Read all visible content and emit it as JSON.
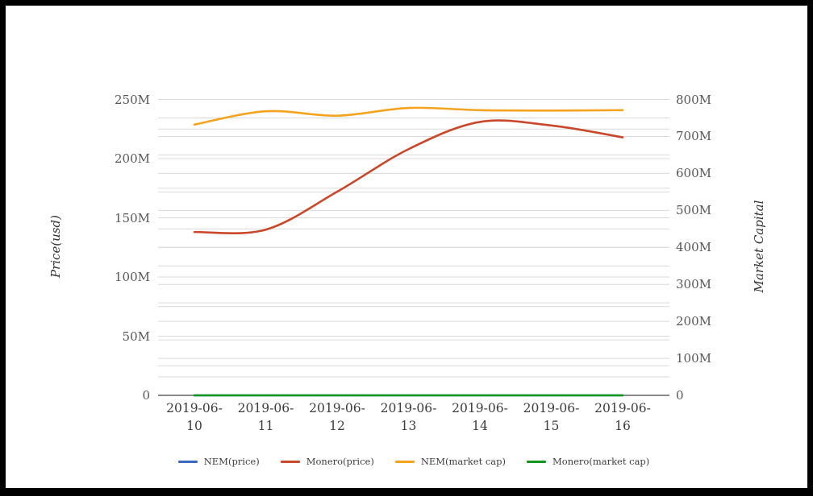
{
  "chart_data": {
    "type": "line",
    "line_style": "smooth",
    "grid": true,
    "legend_position": "bottom",
    "x": [
      "2019-06-10",
      "2019-06-11",
      "2019-06-12",
      "2019-06-13",
      "2019-06-14",
      "2019-06-15",
      "2019-06-16"
    ],
    "x_labels": [
      {
        "line1": "2019-06-",
        "line2": "10"
      },
      {
        "line1": "2019-06-",
        "line2": "11"
      },
      {
        "line1": "2019-06-",
        "line2": "12"
      },
      {
        "line1": "2019-06-",
        "line2": "13"
      },
      {
        "line1": "2019-06-",
        "line2": "14"
      },
      {
        "line1": "2019-06-",
        "line2": "15"
      },
      {
        "line1": "2019-06-",
        "line2": "16"
      }
    ],
    "left_axis": {
      "title": "Price(usd)",
      "tick_labels": [
        "0",
        "50M",
        "100M",
        "150M",
        "200M",
        "250M"
      ],
      "tick_values_millions": [
        0,
        50,
        100,
        150,
        200,
        250
      ],
      "range_millions": [
        0,
        250
      ],
      "minor_step_millions": 25
    },
    "right_axis": {
      "title": "Market Capital",
      "tick_labels": [
        "0",
        "100M",
        "200M",
        "300M",
        "400M",
        "500M",
        "600M",
        "700M",
        "800M"
      ],
      "tick_values_millions": [
        0,
        100,
        200,
        300,
        400,
        500,
        600,
        700,
        800
      ],
      "range_millions": [
        0,
        800
      ],
      "minor_step_millions": 50
    },
    "series": [
      {
        "name": "NEM(price)",
        "axis": "left",
        "color": "#3a67c2",
        "values_millions": [
          0,
          0,
          0,
          0,
          0,
          0,
          0
        ]
      },
      {
        "name": "Monero(price)",
        "axis": "left",
        "color": "#c9482a",
        "values_millions": [
          138,
          140,
          172,
          208,
          231,
          228,
          218
        ]
      },
      {
        "name": "NEM(market cap)",
        "axis": "right",
        "color": "#f5a31f",
        "values_millions": [
          732,
          768,
          756,
          777,
          771,
          770,
          771
        ]
      },
      {
        "name": "Monero(market cap)",
        "axis": "right",
        "color": "#12961b",
        "values_millions": [
          0,
          0,
          0,
          0,
          0,
          0,
          0
        ]
      }
    ],
    "colors": {
      "gridline": "#d9d9d9",
      "zero_axis": "#424242",
      "frame": "#000000",
      "background": "#ffffff"
    }
  }
}
